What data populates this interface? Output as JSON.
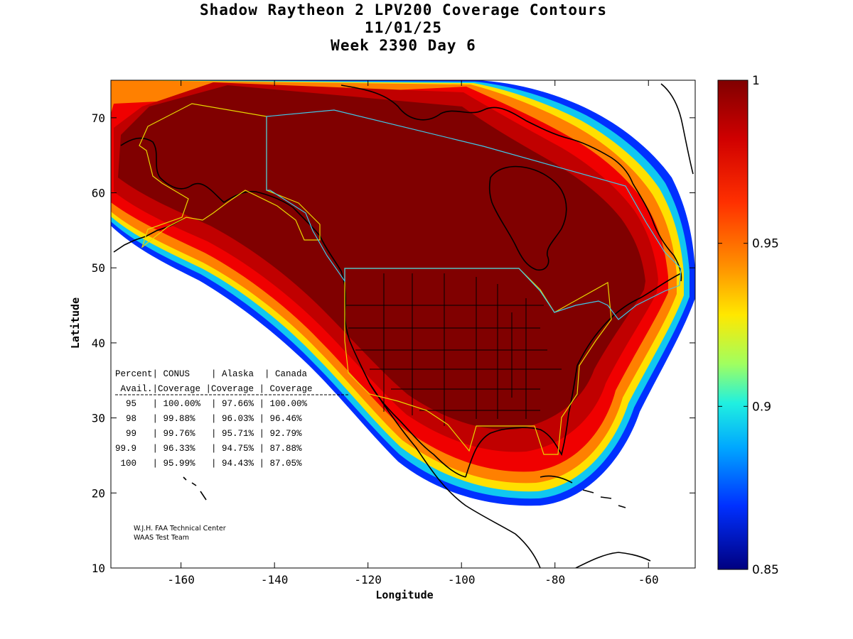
{
  "title": {
    "line1": "Shadow Raytheon 2 LPV200 Coverage Contours",
    "line2": "11/01/25",
    "line3": "Week 2390 Day 6"
  },
  "chart_data": {
    "type": "heatmap",
    "xlabel": "Longitude",
    "ylabel": "Latitude",
    "xlim": [
      -175,
      -50
    ],
    "ylim": [
      10,
      75
    ],
    "xticks": [
      -160,
      -140,
      -120,
      -100,
      -80,
      -60
    ],
    "yticks": [
      10,
      20,
      30,
      40,
      50,
      60,
      70
    ],
    "colorbar": {
      "min": 0.85,
      "max": 1,
      "ticks": [
        "1",
        "0.95",
        "0.9",
        "0.85"
      ],
      "tick_values": [
        1,
        0.95,
        0.9,
        0.85
      ]
    },
    "table": {
      "header1": "Percent| CONUS    | Alaska  | Canada",
      "header2": " Avail.|Coverage |Coverage | Coverage",
      "rows": [
        "  95   | 100.00%  | 97.66% | 100.00%",
        "  98   | 99.88%   | 96.03% | 96.46%",
        "  99   | 99.76%   | 95.71% | 92.79%",
        "99.9   | 96.33%   | 94.75% | 87.88%",
        " 100   | 95.99%   | 94.43% | 87.05%"
      ]
    },
    "credit": [
      "W.J.H. FAA Technical Center",
      "WAAS Test Team"
    ]
  },
  "colors": {
    "high": "#800000",
    "red": "#e00000",
    "orange": "#ff8000",
    "yellow": "#ffe000",
    "cyan": "#10c8f0",
    "blue": "#0040ff",
    "low": "#000080",
    "conus_border": "#e8d800",
    "canada_border": "#40c8e8"
  }
}
